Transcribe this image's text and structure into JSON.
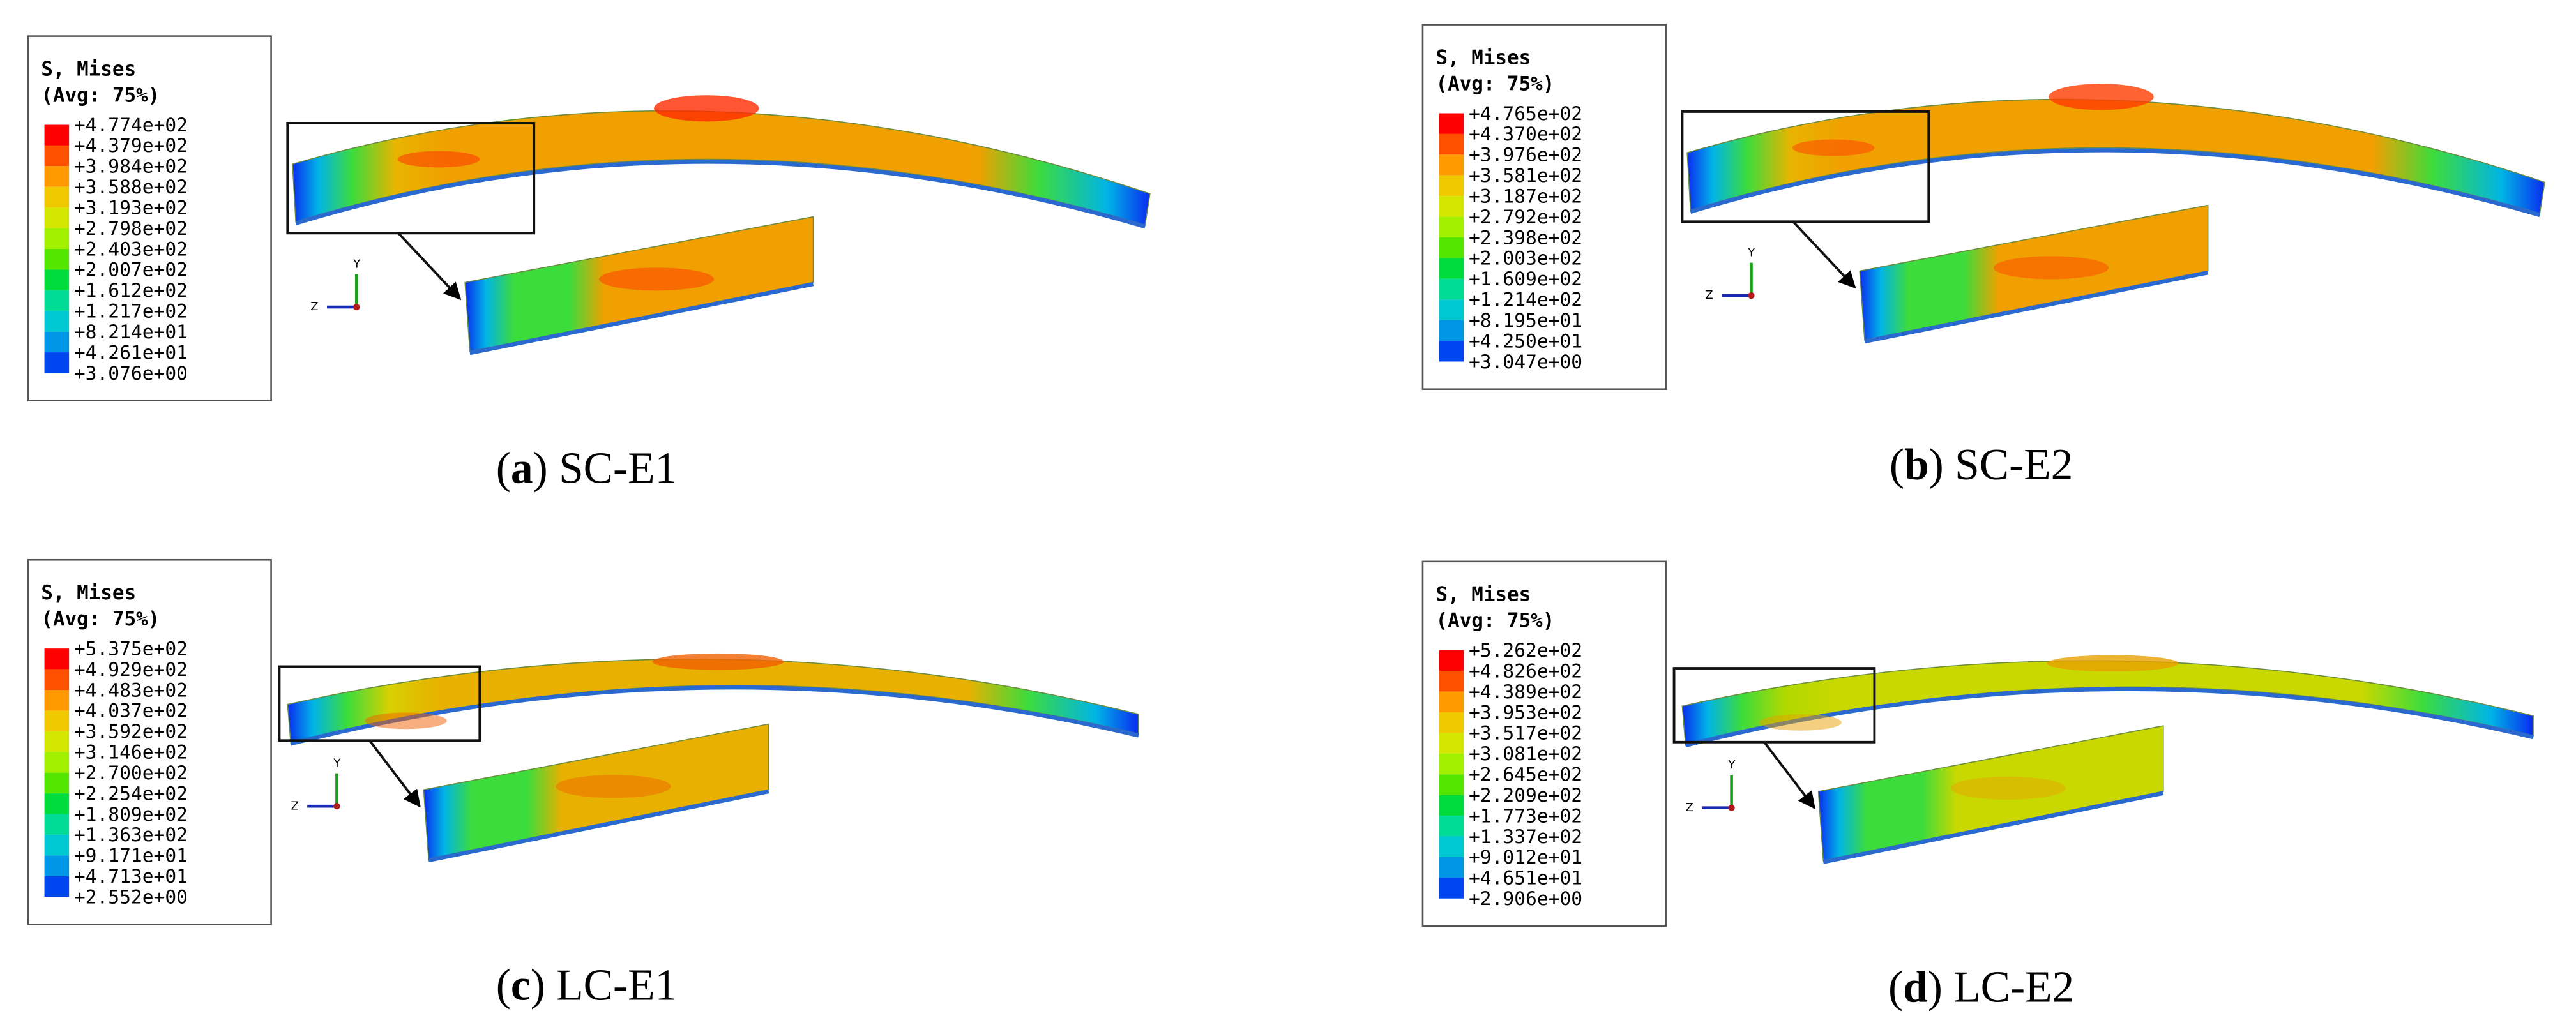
{
  "panels": [
    {
      "legend": {
        "title": "S, Mises",
        "subtitle": "(Avg: 75%)",
        "values": [
          "+4.774e+02",
          "+4.379e+02",
          "+3.984e+02",
          "+3.588e+02",
          "+3.193e+02",
          "+2.798e+02",
          "+2.403e+02",
          "+2.007e+02",
          "+1.612e+02",
          "+1.217e+02",
          "+8.214e+01",
          "+4.261e+01",
          "+3.076e+00"
        ]
      },
      "triad": {
        "y": "Y",
        "z": "Z"
      },
      "caption": {
        "open": "(",
        "letter": "a",
        "rest": ") SC-E1"
      }
    },
    {
      "legend": {
        "title": "S, Mises",
        "subtitle": "(Avg: 75%)",
        "values": [
          "+4.765e+02",
          "+4.370e+02",
          "+3.976e+02",
          "+3.581e+02",
          "+3.187e+02",
          "+2.792e+02",
          "+2.398e+02",
          "+2.003e+02",
          "+1.609e+02",
          "+1.214e+02",
          "+8.195e+01",
          "+4.250e+01",
          "+3.047e+00"
        ]
      },
      "triad": {
        "y": "Y",
        "z": "Z"
      },
      "caption": {
        "open": "(",
        "letter": "b",
        "rest": ") SC-E2"
      }
    },
    {
      "legend": {
        "title": "S, Mises",
        "subtitle": "(Avg: 75%)",
        "values": [
          "+5.375e+02",
          "+4.929e+02",
          "+4.483e+02",
          "+4.037e+02",
          "+3.592e+02",
          "+3.146e+02",
          "+2.700e+02",
          "+2.254e+02",
          "+1.809e+02",
          "+1.363e+02",
          "+9.171e+01",
          "+4.713e+01",
          "+2.552e+00"
        ]
      },
      "triad": {
        "y": "Y",
        "z": "Z"
      },
      "caption": {
        "open": "(",
        "letter": "c",
        "rest": ") LC-E1"
      }
    },
    {
      "legend": {
        "title": "S, Mises",
        "subtitle": "(Avg: 75%)",
        "values": [
          "+5.262e+02",
          "+4.826e+02",
          "+4.389e+02",
          "+3.953e+02",
          "+3.517e+02",
          "+3.081e+02",
          "+2.645e+02",
          "+2.209e+02",
          "+1.773e+02",
          "+1.337e+02",
          "+9.012e+01",
          "+4.651e+01",
          "+2.906e+00"
        ]
      },
      "triad": {
        "y": "Y",
        "z": "Z"
      },
      "caption": {
        "open": "(",
        "letter": "d",
        "rest": ") LC-E2"
      }
    }
  ]
}
